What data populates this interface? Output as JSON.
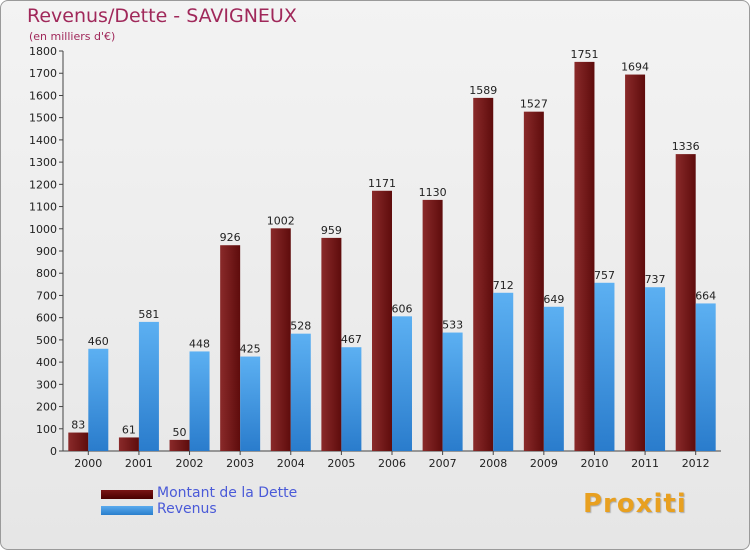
{
  "header": {
    "title": "Revenus/Dette - SAVIGNEUX",
    "subtitle": "(en milliers d'€)"
  },
  "legend": {
    "debt_label": "Montant de la Dette",
    "revenue_label": "Revenus"
  },
  "brand": {
    "logo_text": "Proxiti"
  },
  "colors": {
    "debt": "#6e1616",
    "revenue": "#3d97e0",
    "title": "#a0285a",
    "legend_text": "#4a5ad8"
  },
  "chart_data": {
    "type": "bar",
    "categories": [
      "2000",
      "2001",
      "2002",
      "2003",
      "2004",
      "2005",
      "2006",
      "2007",
      "2008",
      "2009",
      "2010",
      "2011",
      "2012"
    ],
    "series": [
      {
        "name": "Montant de la Dette",
        "values": [
          83,
          61,
          50,
          926,
          1002,
          959,
          1171,
          1130,
          1589,
          1527,
          1751,
          1694,
          1336
        ]
      },
      {
        "name": "Revenus",
        "values": [
          460,
          581,
          448,
          425,
          528,
          467,
          606,
          533,
          712,
          649,
          757,
          737,
          664
        ]
      }
    ],
    "ylim": [
      0,
      1800
    ],
    "yticks": [
      0,
      100,
      200,
      300,
      400,
      500,
      600,
      700,
      800,
      900,
      1000,
      1100,
      1200,
      1300,
      1400,
      1500,
      1600,
      1700,
      1800
    ],
    "grid": false,
    "legend_position": "bottom-left"
  }
}
